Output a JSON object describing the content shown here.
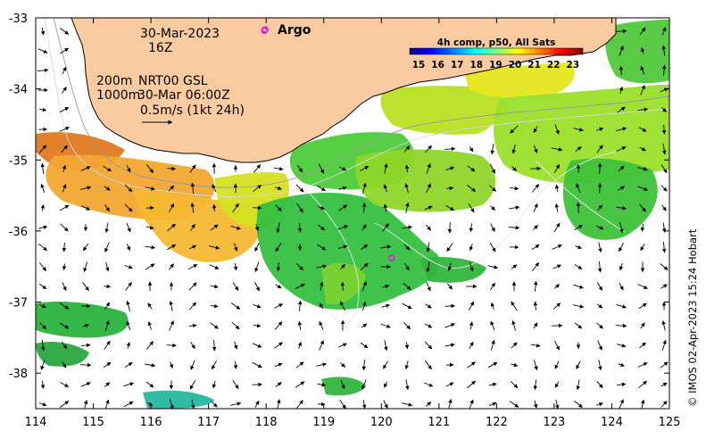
{
  "map": {
    "date": "30-Mar-2023",
    "hour": "16Z",
    "depth_label": "200m",
    "contour_label": "1000m",
    "product": "NRT00 GSL",
    "product_time": "30-Mar 06:00Z",
    "scale_label": "0.5m/s (1kt 24h)",
    "argo_label": "Argo",
    "colorbar_title": "4h comp, p50, All Sats",
    "colorbar_ticks": [
      "15",
      "16",
      "17",
      "18",
      "19",
      "20",
      "21",
      "22",
      "23"
    ],
    "credit": "© IMOS 02-Apr-2023 15:24 Hobart",
    "lon_ticks": [
      "114",
      "115",
      "116",
      "117",
      "118",
      "119",
      "120",
      "121",
      "122",
      "123",
      "124",
      "125"
    ],
    "lat_ticks": [
      "-33",
      "-34",
      "-35",
      "-36",
      "-37",
      "-38"
    ],
    "lon_range": [
      114,
      125
    ],
    "lat_range": [
      -38.5,
      -33
    ],
    "argo_floats": [
      {
        "lon": 117.97,
        "lat": -33.18
      },
      {
        "lon": 120.18,
        "lat": -36.38
      }
    ],
    "colors": {
      "land": "#facba0",
      "argo": "#e020e0",
      "colormap": [
        "#00007f",
        "#0000ff",
        "#007fff",
        "#00ffff",
        "#7fff7f",
        "#ffff00",
        "#ff7f00",
        "#ff0000",
        "#7f0000"
      ]
    }
  }
}
